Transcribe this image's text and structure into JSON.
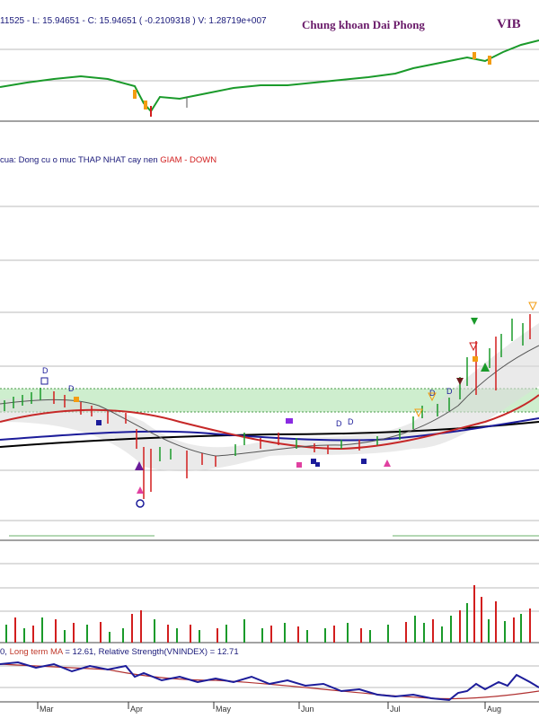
{
  "header": {
    "ohlc_text": "11525 - L: 15.94651 - C: 15.94651 ( -0.2109318 ) V: 1.28719e+007",
    "brand": "Chung khoan Dai Phong",
    "ticker": "VIB"
  },
  "signal": {
    "prefix": "cua:  Dong cu o muc THAP NHAT cay nen ",
    "down_label": "GIAM - DOWN"
  },
  "rs_legend": {
    "prefix": "0, ",
    "long_ma": "Long term MA",
    "rest": " = 12.61, Relative Strength(VNINDEX) = 12.71"
  },
  "months": [
    "Mar",
    "Apr",
    "May",
    "Jun",
    "Jul",
    "Aug"
  ],
  "markers": {
    "d_labels": [
      "D",
      "D",
      "D",
      "D",
      "D",
      "D"
    ]
  },
  "colors": {
    "up": "#1a9a2a",
    "down": "#d21e1e",
    "ma_long": "#000000",
    "ma_mid": "#1c1c9a",
    "ma_short": "#c62828",
    "zone": "#bfe8bf",
    "rs": "#1c1c9a",
    "rs_ma": "#b03030"
  }
}
